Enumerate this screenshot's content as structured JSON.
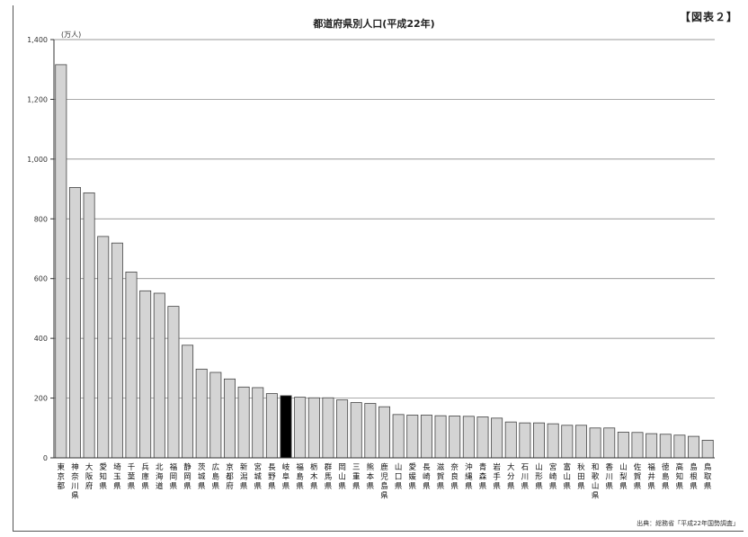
{
  "figure_label": "【図表２】",
  "source": "出典：総務省「平成22年国勢調査」",
  "chart_data": {
    "type": "bar",
    "title": "都道府県別人口(平成22年)",
    "unit": "(万人)",
    "xlabel": "",
    "ylabel": "",
    "ylim": [
      0,
      1400
    ],
    "yticks": [
      0,
      200,
      400,
      600,
      800,
      1000,
      1200,
      1400
    ],
    "ytick_labels": [
      "0",
      "200",
      "400",
      "600",
      "800",
      "1,000",
      "1,200",
      "1,400"
    ],
    "grid": true,
    "legend": "none",
    "bar_color": "#d4d4d4",
    "highlight_color": "#000000",
    "highlight_category": "岐阜県",
    "categories": [
      "東京都",
      "神奈川県",
      "大阪府",
      "愛知県",
      "埼玉県",
      "千葉県",
      "兵庫県",
      "北海道",
      "福岡県",
      "静岡県",
      "茨城県",
      "広島県",
      "京都府",
      "新潟県",
      "宮城県",
      "長野県",
      "岐阜県",
      "福島県",
      "栃木県",
      "群馬県",
      "岡山県",
      "三重県",
      "熊本県",
      "鹿児島県",
      "山口県",
      "愛媛県",
      "長崎県",
      "滋賀県",
      "奈良県",
      "沖縄県",
      "青森県",
      "岩手県",
      "大分県",
      "石川県",
      "山形県",
      "宮崎県",
      "富山県",
      "秋田県",
      "和歌山県",
      "香川県",
      "山梨県",
      "佐賀県",
      "福井県",
      "徳島県",
      "高知県",
      "島根県",
      "鳥取県"
    ],
    "values": [
      1316,
      905,
      887,
      741,
      719,
      622,
      559,
      551,
      507,
      377,
      297,
      286,
      264,
      237,
      235,
      215,
      208,
      203,
      201,
      201,
      194,
      185,
      182,
      171,
      145,
      143,
      143,
      141,
      140,
      139,
      137,
      133,
      120,
      117,
      117,
      114,
      109,
      109,
      100,
      100,
      86,
      85,
      81,
      79,
      76,
      72,
      59
    ]
  }
}
